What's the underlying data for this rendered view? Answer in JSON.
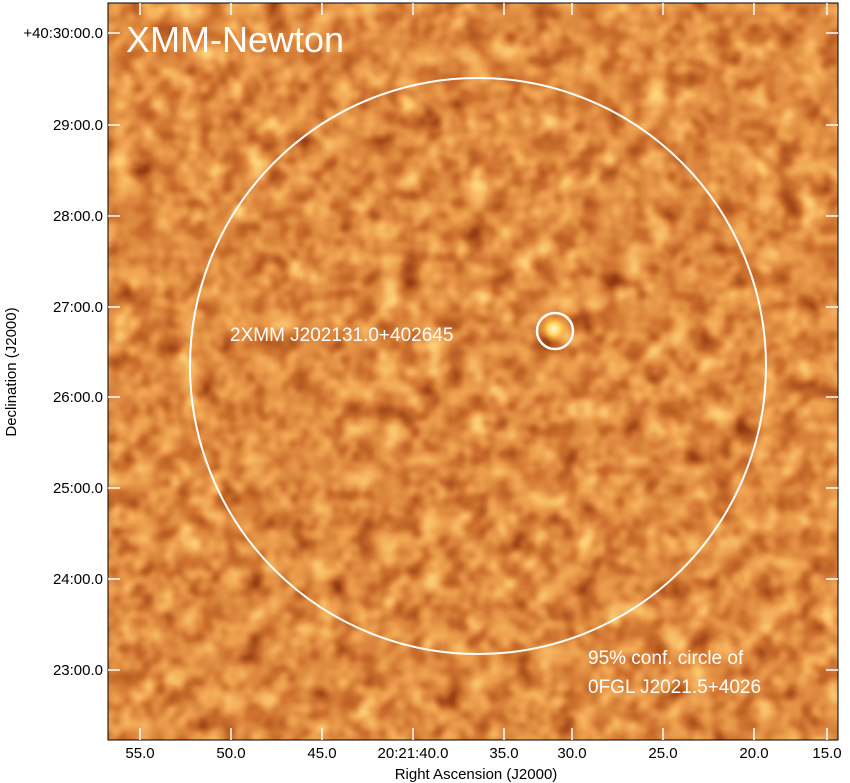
{
  "image": {
    "telescope_label": "XMM-Newton",
    "source_label": "2XMM J202131.0+402645",
    "confidence_label_line1": "95% conf. circle of",
    "confidence_label_line2": "0FGL J2021.5+4026",
    "colors": {
      "map_dark": "#1a0000",
      "map_mid": "#8a2a06",
      "map_bright": "#f29a1e",
      "map_peak": "#fff2b0",
      "overlay": "#ffffff",
      "frame": "#ffffff"
    }
  },
  "axes": {
    "x_title": "Right Ascension (J2000)",
    "y_title": "Declination (J2000)",
    "x_ticks": [
      "55.0",
      "50.0",
      "45.0",
      "20:21:40.0",
      "35.0",
      "30.0",
      "25.0",
      "20.0",
      "15.0"
    ],
    "y_ticks": [
      "+40:30:00.0",
      "29:00.0",
      "28:00.0",
      "27:00.0",
      "26:00.0",
      "25:00.0",
      "24:00.0",
      "23:00.0"
    ]
  }
}
